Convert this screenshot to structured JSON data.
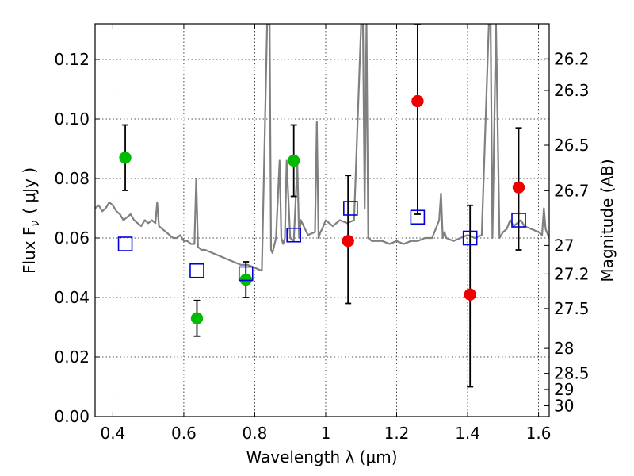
{
  "chart_data": {
    "type": "scatter",
    "xlabel": "Wavelength  λ (μm)",
    "ylabel": "Flux  F",
    "ylabel_subscript": "ν",
    "ylabel_unit": "( μJy )",
    "y2label": "Magnitude (AB)",
    "xlim": [
      0.35,
      1.63
    ],
    "ylim": [
      0.0,
      0.132
    ],
    "grid": true,
    "x_ticks": [
      0.4,
      0.6,
      0.8,
      1.0,
      1.2,
      1.4,
      1.6
    ],
    "x_tick_labels": [
      "0.4",
      "0.6",
      "0.8",
      "1",
      "1.2",
      "1.4",
      "1.6"
    ],
    "y_ticks": [
      0.0,
      0.02,
      0.04,
      0.06,
      0.08,
      0.1,
      0.12
    ],
    "y_tick_labels": [
      "0.00",
      "0.02",
      "0.04",
      "0.06",
      "0.08",
      "0.10",
      "0.12"
    ],
    "mag_ticks": [
      {
        "label": "26.2",
        "flux": 0.1202
      },
      {
        "label": "26.3",
        "flux": 0.1096
      },
      {
        "label": "26.5",
        "flux": 0.0912
      },
      {
        "label": "26.7",
        "flux": 0.0759
      },
      {
        "label": "27",
        "flux": 0.0575
      },
      {
        "label": "27.2",
        "flux": 0.0479
      },
      {
        "label": "27.5",
        "flux": 0.0363
      },
      {
        "label": "28",
        "flux": 0.0229
      },
      {
        "label": "28.5",
        "flux": 0.0145
      },
      {
        "label": "29",
        "flux": 0.0091
      },
      {
        "label": "30",
        "flux": 0.0036
      }
    ],
    "series": [
      {
        "kind": "model-spectrum",
        "color": "#808080",
        "x": [
          0.35,
          0.36,
          0.37,
          0.38,
          0.39,
          0.4,
          0.41,
          0.42,
          0.43,
          0.44,
          0.45,
          0.46,
          0.47,
          0.48,
          0.49,
          0.5,
          0.51,
          0.52,
          0.525,
          0.53,
          0.54,
          0.55,
          0.56,
          0.57,
          0.58,
          0.59,
          0.6,
          0.61,
          0.62,
          0.63,
          0.635,
          0.64,
          0.65,
          0.66,
          0.68,
          0.7,
          0.72,
          0.74,
          0.76,
          0.78,
          0.8,
          0.82,
          0.835,
          0.838,
          0.842,
          0.846,
          0.85,
          0.86,
          0.87,
          0.875,
          0.88,
          0.885,
          0.89,
          0.9,
          0.91,
          0.92,
          0.925,
          0.93,
          0.95,
          0.97,
          0.975,
          0.98,
          0.985,
          0.99,
          1.0,
          1.02,
          1.04,
          1.06,
          1.08,
          1.1,
          1.105,
          1.11,
          1.115,
          1.12,
          1.13,
          1.14,
          1.16,
          1.18,
          1.2,
          1.22,
          1.24,
          1.26,
          1.28,
          1.3,
          1.32,
          1.325,
          1.33,
          1.335,
          1.34,
          1.36,
          1.38,
          1.4,
          1.42,
          1.44,
          1.46,
          1.465,
          1.47,
          1.48,
          1.49,
          1.5,
          1.51,
          1.52,
          1.53,
          1.54,
          1.55,
          1.56,
          1.58,
          1.6,
          1.61,
          1.615,
          1.62,
          1.63
        ],
        "y": [
          0.07,
          0.071,
          0.069,
          0.07,
          0.072,
          0.071,
          0.069,
          0.068,
          0.066,
          0.067,
          0.068,
          0.066,
          0.065,
          0.064,
          0.066,
          0.065,
          0.066,
          0.065,
          0.072,
          0.064,
          0.063,
          0.062,
          0.061,
          0.06,
          0.06,
          0.061,
          0.059,
          0.059,
          0.058,
          0.058,
          0.08,
          0.057,
          0.056,
          0.056,
          0.055,
          0.054,
          0.053,
          0.052,
          0.051,
          0.051,
          0.05,
          0.049,
          0.132,
          0.132,
          0.132,
          0.056,
          0.055,
          0.06,
          0.086,
          0.06,
          0.058,
          0.06,
          0.086,
          0.06,
          0.059,
          0.085,
          0.06,
          0.066,
          0.061,
          0.062,
          0.099,
          0.06,
          0.062,
          0.063,
          0.066,
          0.064,
          0.066,
          0.065,
          0.066,
          0.132,
          0.132,
          0.07,
          0.132,
          0.06,
          0.059,
          0.059,
          0.059,
          0.058,
          0.059,
          0.058,
          0.059,
          0.059,
          0.06,
          0.06,
          0.066,
          0.075,
          0.06,
          0.062,
          0.06,
          0.059,
          0.06,
          0.061,
          0.06,
          0.061,
          0.132,
          0.132,
          0.06,
          0.132,
          0.06,
          0.062,
          0.063,
          0.066,
          0.064,
          0.065,
          0.066,
          0.064,
          0.063,
          0.062,
          0.061,
          0.07,
          0.063,
          0.06
        ]
      },
      {
        "kind": "observed-detections",
        "color": "#00bb00",
        "points": [
          {
            "x": 0.435,
            "y": 0.087,
            "err_lo": 0.076,
            "err_hi": 0.098
          },
          {
            "x": 0.637,
            "y": 0.033,
            "err_lo": 0.027,
            "err_hi": 0.039
          },
          {
            "x": 0.775,
            "y": 0.046,
            "err_lo": 0.04,
            "err_hi": 0.052
          },
          {
            "x": 0.91,
            "y": 0.086,
            "err_lo": 0.074,
            "err_hi": 0.098
          }
        ]
      },
      {
        "kind": "observed-low-snr",
        "color": "#ee0000",
        "points": [
          {
            "x": 1.063,
            "y": 0.059,
            "err_lo": 0.038,
            "err_hi": 0.081
          },
          {
            "x": 1.259,
            "y": 0.106,
            "err_lo": 0.068,
            "err_hi": 0.132
          },
          {
            "x": 1.407,
            "y": 0.041,
            "err_lo": 0.01,
            "err_hi": 0.071
          },
          {
            "x": 1.544,
            "y": 0.077,
            "err_lo": 0.056,
            "err_hi": 0.097
          }
        ]
      },
      {
        "kind": "model-band-flux",
        "color": "#0000dd",
        "marker": "open-square",
        "points": [
          {
            "x": 0.435,
            "y": 0.058
          },
          {
            "x": 0.637,
            "y": 0.049
          },
          {
            "x": 0.775,
            "y": 0.048
          },
          {
            "x": 0.91,
            "y": 0.061
          },
          {
            "x": 1.07,
            "y": 0.07
          },
          {
            "x": 1.259,
            "y": 0.067
          },
          {
            "x": 1.407,
            "y": 0.06
          },
          {
            "x": 1.544,
            "y": 0.066
          }
        ]
      }
    ]
  }
}
